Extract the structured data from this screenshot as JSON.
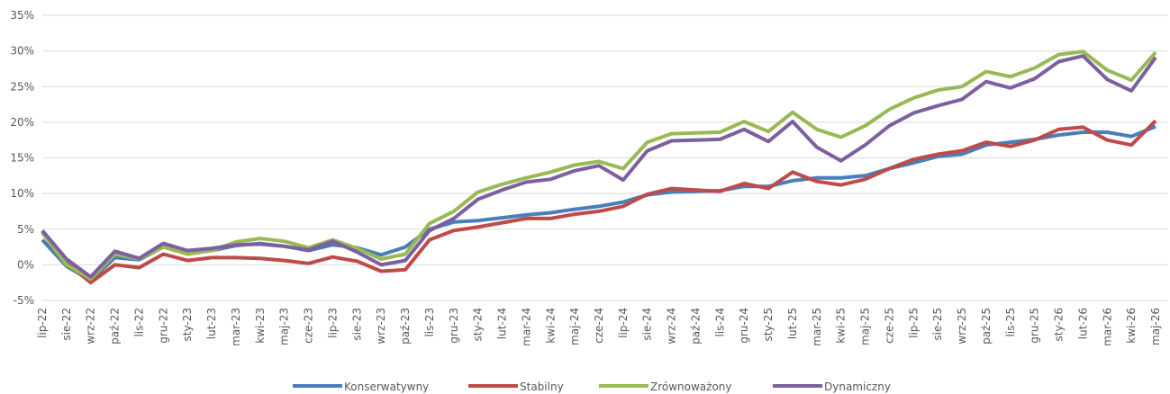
{
  "chart_data": {
    "type": "line",
    "categories": [
      "lip-22",
      "sie-22",
      "wrz-22",
      "paź-22",
      "lis-22",
      "gru-22",
      "sty-23",
      "lut-23",
      "mar-23",
      "kwi-23",
      "maj-23",
      "cze-23",
      "lip-23",
      "sie-23",
      "wrz-23",
      "paź-23",
      "lis-23",
      "gru-23",
      "sty-24",
      "lut-24",
      "mar-24",
      "kwi-24",
      "maj-24",
      "cze-24",
      "lip-24",
      "sie-24",
      "wrz-24",
      "paź-24",
      "lis-24",
      "gru-24",
      "sty-25",
      "lut-25",
      "mar-25",
      "kwi-25",
      "maj-25",
      "cze-25",
      "lip-25",
      "sie-25",
      "wrz-25",
      "paź-25",
      "lis-25",
      "gru-25",
      "sty-26",
      "lut-26",
      "mar-26",
      "kwi-26",
      "maj-26"
    ],
    "series": [
      {
        "name": "Konserwatywny",
        "color": "#4a7ebb",
        "values": [
          3.5,
          -0.2,
          -2.2,
          1.0,
          0.7,
          2.5,
          1.8,
          2.0,
          2.7,
          3.0,
          2.6,
          2.0,
          2.8,
          2.4,
          1.4,
          2.5,
          5.0,
          6.0,
          6.2,
          6.6,
          7.0,
          7.3,
          7.8,
          8.2,
          8.8,
          9.8,
          10.2,
          10.3,
          10.4,
          11.0,
          11.0,
          11.8,
          12.2,
          12.2,
          12.5,
          13.5,
          14.3,
          15.2,
          15.5,
          16.8,
          17.2,
          17.6,
          18.2,
          18.6,
          18.6,
          18.0,
          19.4
        ]
      },
      {
        "name": "Stabilny",
        "color": "#be4b48",
        "values": [
          4.7,
          0.3,
          -2.5,
          0.0,
          -0.4,
          1.5,
          0.6,
          1.0,
          1.0,
          0.9,
          0.6,
          0.2,
          1.1,
          0.5,
          -0.9,
          -0.7,
          3.5,
          4.8,
          5.3,
          5.9,
          6.5,
          6.5,
          7.1,
          7.5,
          8.2,
          9.9,
          10.7,
          10.5,
          10.3,
          11.4,
          10.7,
          13.0,
          11.7,
          11.2,
          12.0,
          13.5,
          14.8,
          15.5,
          16.0,
          17.2,
          16.6,
          17.5,
          19.0,
          19.3,
          17.5,
          16.8,
          20.2
        ]
      },
      {
        "name": "Zrównoważony",
        "color": "#98b954",
        "values": [
          4.5,
          0.0,
          -2.0,
          1.5,
          0.8,
          2.5,
          1.5,
          2.0,
          3.2,
          3.7,
          3.3,
          2.4,
          3.5,
          2.3,
          0.8,
          1.5,
          5.8,
          7.5,
          10.2,
          11.3,
          12.2,
          13.0,
          14.0,
          14.5,
          13.5,
          17.2,
          18.4,
          18.5,
          18.6,
          20.1,
          18.7,
          21.4,
          19.0,
          17.9,
          19.5,
          21.8,
          23.4,
          24.5,
          25.0,
          27.1,
          26.4,
          27.6,
          29.5,
          29.9,
          27.3,
          25.9,
          29.8
        ]
      },
      {
        "name": "Dynamiczny",
        "color": "#7d5fa0",
        "values": [
          4.8,
          0.8,
          -1.7,
          1.9,
          0.9,
          3.0,
          2.0,
          2.3,
          2.8,
          2.9,
          2.6,
          2.1,
          3.3,
          1.8,
          0.0,
          0.6,
          4.8,
          6.5,
          9.2,
          10.5,
          11.6,
          12.0,
          13.2,
          13.9,
          11.9,
          16.0,
          17.4,
          17.5,
          17.6,
          19.0,
          17.3,
          20.1,
          16.5,
          14.6,
          16.8,
          19.5,
          21.3,
          22.3,
          23.2,
          25.7,
          24.8,
          26.1,
          28.5,
          29.3,
          26.0,
          24.4,
          29.1
        ]
      }
    ],
    "ylim": [
      -5,
      35
    ],
    "yticks": [
      {
        "value": -5,
        "label": "-5%"
      },
      {
        "value": 0,
        "label": "0%"
      },
      {
        "value": 5,
        "label": "5%"
      },
      {
        "value": 10,
        "label": "10%"
      },
      {
        "value": 15,
        "label": "15%"
      },
      {
        "value": 20,
        "label": "20%"
      },
      {
        "value": 25,
        "label": "25%"
      },
      {
        "value": 30,
        "label": "30%"
      },
      {
        "value": 35,
        "label": "35%"
      }
    ],
    "grid": true,
    "legend": "bottom"
  }
}
